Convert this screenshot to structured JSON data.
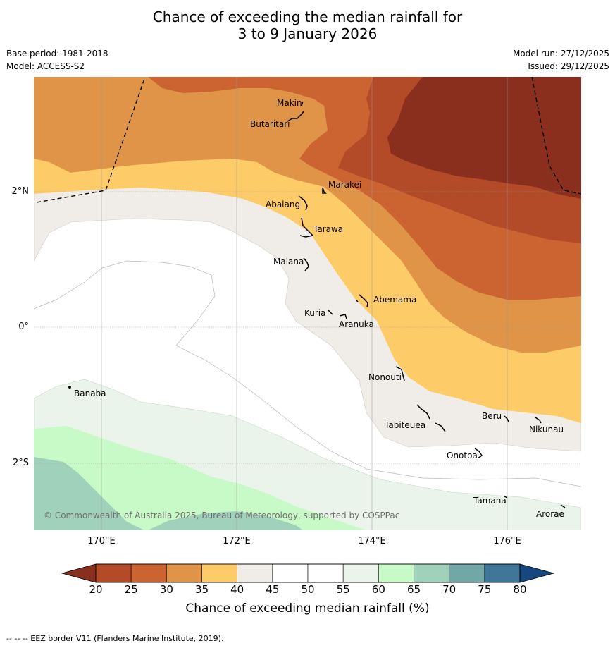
{
  "title_line1": "Chance of exceeding the median rainfall for",
  "title_line2": "3 to 9 January 2026",
  "meta": {
    "base_period": "Base period: 1981-2018",
    "model": "Model: ACCESS-S2",
    "model_run": "Model run: 27/12/2025",
    "issued": "Issued: 29/12/2025"
  },
  "axes": {
    "longitudes": [
      "170°E",
      "172°E",
      "174°E",
      "176°E"
    ],
    "latitudes": [
      "2°N",
      "0°",
      "2°S"
    ]
  },
  "places": [
    "Makin",
    "Butaritari",
    "Marakei",
    "Abaiang",
    "Tarawa",
    "Maiana",
    "Abemama",
    "Kuria",
    "Aranuka",
    "Nonouti",
    "Banaba",
    "Tabiteuea",
    "Beru",
    "Nikunau",
    "Onotoa",
    "Tamana",
    "Arorae"
  ],
  "copyright": "© Commonwealth of Australia 2025, Bureau of Meteorology, supported by COSPPac",
  "colorbar": {
    "ticks": [
      "20",
      "25",
      "30",
      "35",
      "40",
      "45",
      "50",
      "55",
      "60",
      "65",
      "70",
      "75",
      "80"
    ],
    "colors": [
      "#b34a28",
      "#cb6431",
      "#e09448",
      "#fdcb68",
      "#f0ede8",
      "#ffffff",
      "#ffffff",
      "#ebf4ea",
      "#c8fac8",
      "#9fd1bb",
      "#72a7a7",
      "#3e7798"
    ],
    "under_color": "#8a2e1e",
    "over_color": "#16487f",
    "label": "Chance of exceeding median rainfall (%)"
  },
  "footer": "--  --  -- EEZ border V11 (Flanders Marine Institute, 2019)."
}
